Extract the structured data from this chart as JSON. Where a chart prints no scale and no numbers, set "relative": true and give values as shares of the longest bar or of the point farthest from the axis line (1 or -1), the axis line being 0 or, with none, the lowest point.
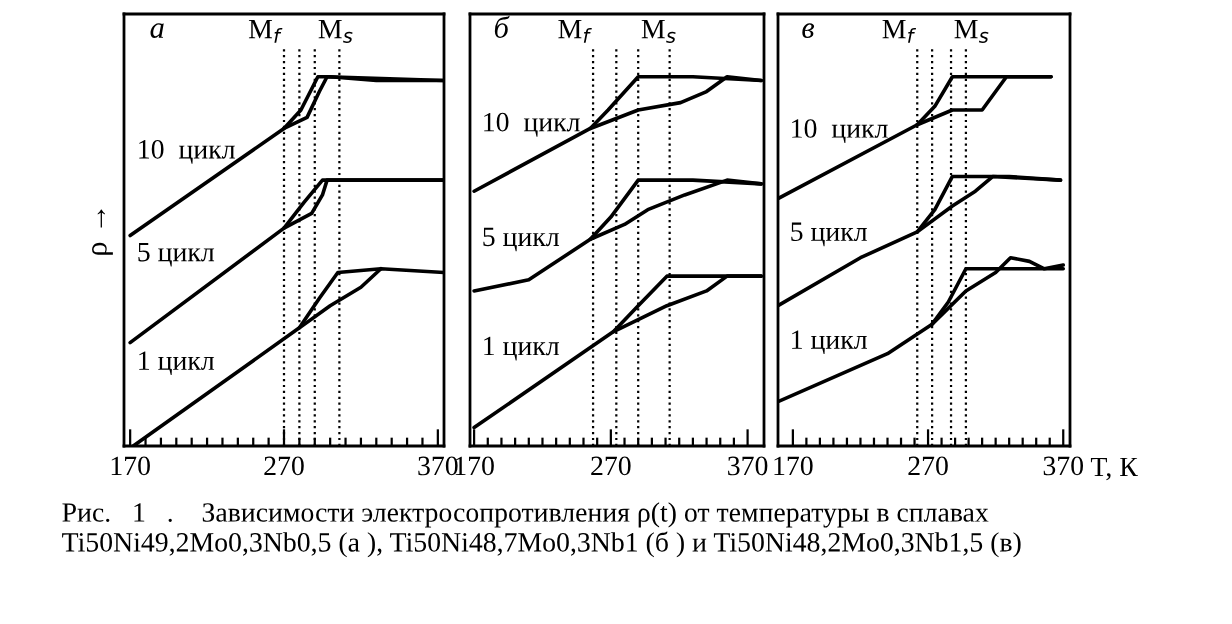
{
  "chart_data": [
    {
      "type": "line",
      "title": "а",
      "ylabel": "ρ →",
      "relative": true,
      "tick_labels": "x",
      "grid": false,
      "legend": false,
      "line_style": "solid",
      "marker": "none",
      "xlim": [
        166,
        374
      ],
      "xticks": [
        {
          "value": 170,
          "label": "170"
        },
        {
          "value": 180,
          "label": null
        },
        {
          "value": 190,
          "label": null
        },
        {
          "value": 200,
          "label": null
        },
        {
          "value": 210,
          "label": null
        },
        {
          "value": 220,
          "label": null
        },
        {
          "value": 230,
          "label": null
        },
        {
          "value": 240,
          "label": null
        },
        {
          "value": 250,
          "label": null
        },
        {
          "value": 260,
          "label": null
        },
        {
          "value": 270,
          "label": "270"
        },
        {
          "value": 280,
          "label": null
        },
        {
          "value": 290,
          "label": null
        },
        {
          "value": 300,
          "label": null
        },
        {
          "value": 310,
          "label": null
        },
        {
          "value": 320,
          "label": null
        },
        {
          "value": 330,
          "label": null
        },
        {
          "value": 340,
          "label": null
        },
        {
          "value": 350,
          "label": null
        },
        {
          "value": 360,
          "label": null
        },
        {
          "value": 370,
          "label": "370"
        }
      ],
      "series": [
        {
          "name": "10  цикл",
          "color": "#000000",
          "x": [
            170,
            270,
            281,
            292,
            300,
            330,
            374
          ],
          "values": [
            0.57,
            0.86,
            0.91,
            1.0,
            1.0,
            0.99,
            0.99
          ]
        },
        {
          "color": "#000000",
          "x": [
            270,
            285,
            293,
            298,
            374
          ],
          "values": [
            0.86,
            0.89,
            0.96,
            1.0,
            0.99
          ]
        },
        {
          "name": "5 цикл",
          "color": "#000000",
          "x": [
            170,
            270,
            283,
            295,
            330,
            374
          ],
          "values": [
            0.28,
            0.59,
            0.66,
            0.72,
            0.72,
            0.72
          ]
        },
        {
          "color": "#000000",
          "x": [
            270,
            288,
            295,
            298,
            374
          ],
          "values": [
            0.59,
            0.63,
            0.68,
            0.72,
            0.72
          ]
        },
        {
          "name": "1 цикл",
          "color": "#000000",
          "x": [
            172,
            280,
            293,
            305,
            333,
            374
          ],
          "values": [
            0.0,
            0.32,
            0.4,
            0.47,
            0.48,
            0.47
          ]
        },
        {
          "color": "#000000",
          "x": [
            280,
            300,
            320,
            333
          ],
          "values": [
            0.32,
            0.38,
            0.43,
            0.48
          ]
        }
      ],
      "ref_lines": [
        {
          "axis": "x",
          "value": 270,
          "label": "M$_{f}$",
          "line_style": "dotted"
        },
        {
          "axis": "x",
          "value": 290,
          "label": "M$_{s}$",
          "line_style": "dotted"
        },
        {
          "axis": "x",
          "value": 280,
          "line_style": "dotted"
        },
        {
          "axis": "x",
          "value": 306,
          "line_style": "dotted"
        }
      ],
      "annotations": [
        "Рис.   1   .    Зависимости электросопротивления ρ(t) от температуры в сплавах Ti50Ni49,2Mo0,3Nb0,5 (а ), Ti50Ni48,7Mo0,3Nb1 (б ) и Ti50Ni48,2Mo0,3Nb1,5 (в)"
      ]
    },
    {
      "type": "line",
      "title": "б",
      "relative": true,
      "tick_labels": "x",
      "grid": false,
      "legend": false,
      "line_style": "solid",
      "marker": "none",
      "xlim": [
        167,
        382
      ],
      "xticks": [
        {
          "value": 170,
          "label": "170"
        },
        {
          "value": 180,
          "label": null
        },
        {
          "value": 190,
          "label": null
        },
        {
          "value": 200,
          "label": null
        },
        {
          "value": 210,
          "label": null
        },
        {
          "value": 220,
          "label": null
        },
        {
          "value": 230,
          "label": null
        },
        {
          "value": 240,
          "label": null
        },
        {
          "value": 250,
          "label": null
        },
        {
          "value": 260,
          "label": null
        },
        {
          "value": 270,
          "label": "270"
        },
        {
          "value": 280,
          "label": null
        },
        {
          "value": 290,
          "label": null
        },
        {
          "value": 300,
          "label": null
        },
        {
          "value": 310,
          "label": null
        },
        {
          "value": 320,
          "label": null
        },
        {
          "value": 330,
          "label": null
        },
        {
          "value": 340,
          "label": null
        },
        {
          "value": 350,
          "label": null
        },
        {
          "value": 360,
          "label": null
        },
        {
          "value": 370,
          "label": "370"
        }
      ],
      "series": [
        {
          "name": "10  цикл",
          "color": "#000000",
          "x": [
            170,
            255,
            268,
            290,
            330,
            380
          ],
          "values": [
            0.69,
            0.86,
            0.91,
            1.0,
            1.0,
            0.99
          ]
        },
        {
          "color": "#000000",
          "x": [
            255,
            290,
            321,
            340,
            355,
            380
          ],
          "values": [
            0.86,
            0.91,
            0.93,
            0.96,
            1.0,
            0.99
          ]
        },
        {
          "name": "5 цикл",
          "color": "#000000",
          "x": [
            170,
            210,
            255,
            270,
            290,
            330,
            380
          ],
          "values": [
            0.42,
            0.45,
            0.56,
            0.62,
            0.72,
            0.72,
            0.71
          ]
        },
        {
          "color": "#000000",
          "x": [
            255,
            280,
            297,
            324,
            355,
            380
          ],
          "values": [
            0.56,
            0.6,
            0.64,
            0.68,
            0.72,
            0.71
          ]
        },
        {
          "name": "1 цикл",
          "color": "#000000",
          "x": [
            170,
            272,
            290,
            311,
            350,
            380
          ],
          "values": [
            0.05,
            0.31,
            0.38,
            0.46,
            0.46,
            0.46
          ]
        },
        {
          "color": "#000000",
          "x": [
            272,
            311,
            340,
            355,
            380
          ],
          "values": [
            0.31,
            0.38,
            0.42,
            0.46,
            0.46
          ]
        }
      ],
      "ref_lines": [
        {
          "axis": "x",
          "value": 257,
          "label": "M$_{f}$",
          "line_style": "dotted"
        },
        {
          "axis": "x",
          "value": 290,
          "label": "M$_{s}$",
          "line_style": "dotted"
        },
        {
          "axis": "x",
          "value": 274,
          "line_style": "dotted"
        },
        {
          "axis": "x",
          "value": 313,
          "line_style": "dotted"
        }
      ]
    },
    {
      "type": "line",
      "title": "в",
      "xlabel": "T, К",
      "relative": true,
      "tick_labels": "x",
      "grid": false,
      "legend": false,
      "line_style": "solid",
      "marker": "none",
      "xlim": [
        159,
        375
      ],
      "xticks": [
        {
          "value": 170,
          "label": "170"
        },
        {
          "value": 180,
          "label": null
        },
        {
          "value": 190,
          "label": null
        },
        {
          "value": 200,
          "label": null
        },
        {
          "value": 210,
          "label": null
        },
        {
          "value": 220,
          "label": null
        },
        {
          "value": 230,
          "label": null
        },
        {
          "value": 240,
          "label": null
        },
        {
          "value": 250,
          "label": null
        },
        {
          "value": 260,
          "label": null
        },
        {
          "value": 270,
          "label": "270"
        },
        {
          "value": 280,
          "label": null
        },
        {
          "value": 290,
          "label": null
        },
        {
          "value": 300,
          "label": null
        },
        {
          "value": 310,
          "label": null
        },
        {
          "value": 320,
          "label": null
        },
        {
          "value": 330,
          "label": null
        },
        {
          "value": 340,
          "label": null
        },
        {
          "value": 350,
          "label": null
        },
        {
          "value": 360,
          "label": null
        },
        {
          "value": 370,
          "label": "370"
        }
      ],
      "series": [
        {
          "name": "10  цикл",
          "color": "#000000",
          "x": [
            159,
            262,
            275,
            288,
            330,
            361
          ],
          "values": [
            0.67,
            0.87,
            0.92,
            1.0,
            1.0,
            1.0
          ]
        },
        {
          "color": "#000000",
          "x": [
            262,
            288,
            310,
            320,
            328,
            361
          ],
          "values": [
            0.87,
            0.91,
            0.91,
            0.96,
            1.0,
            1.0
          ]
        },
        {
          "name": "5 цикл",
          "color": "#000000",
          "x": [
            159,
            220,
            262,
            275,
            288,
            330,
            368
          ],
          "values": [
            0.38,
            0.51,
            0.58,
            0.64,
            0.73,
            0.73,
            0.72
          ]
        },
        {
          "color": "#000000",
          "x": [
            262,
            288,
            305,
            318,
            368
          ],
          "values": [
            0.58,
            0.65,
            0.69,
            0.73,
            0.72
          ]
        },
        {
          "name": "1 цикл",
          "color": "#000000",
          "x": [
            159,
            240,
            273,
            285,
            298,
            340,
            370
          ],
          "values": [
            0.12,
            0.25,
            0.33,
            0.39,
            0.48,
            0.48,
            0.48
          ]
        },
        {
          "color": "#000000",
          "x": [
            273,
            298,
            320,
            331,
            345,
            356,
            370
          ],
          "values": [
            0.33,
            0.42,
            0.47,
            0.51,
            0.5,
            0.48,
            0.49
          ]
        }
      ],
      "ref_lines": [
        {
          "axis": "x",
          "value": 262,
          "label": "M$_{f}$",
          "line_style": "dotted"
        },
        {
          "axis": "x",
          "value": 287,
          "label": "M$_{s}$",
          "line_style": "dotted"
        },
        {
          "axis": "x",
          "value": 273,
          "line_style": "dotted"
        },
        {
          "axis": "x",
          "value": 298,
          "line_style": "dotted"
        }
      ]
    }
  ]
}
